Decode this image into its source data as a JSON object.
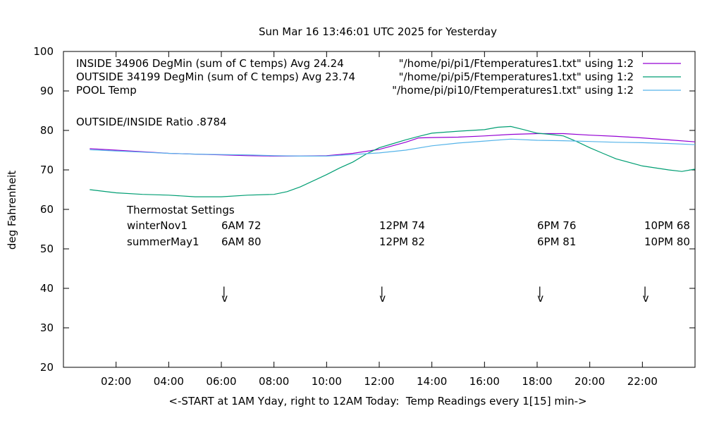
{
  "chart_data": {
    "type": "line",
    "title": "Sun Mar 16 13:46:01 UTC 2025 for Yesterday",
    "xlabel": "<-START at 1AM Yday, right to 12AM Today:  Temp Readings every 1[15] min->",
    "ylabel": "deg Fahrenheit",
    "xlim": [
      0.0,
      24.0
    ],
    "ylim": [
      20,
      100
    ],
    "yticks": [
      20,
      30,
      40,
      50,
      60,
      70,
      80,
      90,
      100
    ],
    "xticks": [
      {
        "x": 2,
        "label": "02:00"
      },
      {
        "x": 4,
        "label": "04:00"
      },
      {
        "x": 6,
        "label": "06:00"
      },
      {
        "x": 8,
        "label": "08:00"
      },
      {
        "x": 10,
        "label": "10:00"
      },
      {
        "x": 12,
        "label": "12:00"
      },
      {
        "x": 14,
        "label": "14:00"
      },
      {
        "x": 16,
        "label": "16:00"
      },
      {
        "x": 18,
        "label": "18:00"
      },
      {
        "x": 20,
        "label": "20:00"
      },
      {
        "x": 22,
        "label": "22:00"
      }
    ],
    "grid": false,
    "legend_position": "top-right",
    "series": [
      {
        "name": "INSIDE 34906 DegMin (sum of C temps) Avg 24.24",
        "source": "\"/home/pi/pi1/Ftemperatures1.txt\" using 1:2",
        "color": "#9400d3",
        "x": [
          1,
          2,
          3,
          4,
          5,
          6,
          7,
          8,
          9,
          10,
          11,
          12,
          13,
          13.5,
          14,
          15,
          16,
          17,
          18,
          19,
          20,
          21,
          22,
          23,
          24
        ],
        "y": [
          75.4,
          75.0,
          74.6,
          74.2,
          74.0,
          73.8,
          73.6,
          73.5,
          73.5,
          73.6,
          74.2,
          75.2,
          77.0,
          78.1,
          78.2,
          78.3,
          78.6,
          79.0,
          79.2,
          79.2,
          78.8,
          78.5,
          78.1,
          77.6,
          77.1
        ]
      },
      {
        "name": "OUTSIDE 34199 DegMin (sum of C temps) Avg 23.74",
        "source": "\"/home/pi/pi5/Ftemperatures1.txt\" using 1:2",
        "color": "#009e73",
        "x": [
          1,
          2,
          3,
          4,
          5,
          6,
          7,
          8,
          8.5,
          9,
          10,
          10.5,
          11,
          11.5,
          12,
          12.5,
          13,
          13.5,
          14,
          15,
          16,
          16.5,
          17,
          17.5,
          18,
          18.5,
          19,
          19.5,
          20,
          20.5,
          21,
          22,
          23,
          23.5,
          24
        ],
        "y": [
          65.0,
          64.2,
          63.8,
          63.6,
          63.2,
          63.2,
          63.6,
          63.8,
          64.5,
          65.7,
          68.8,
          70.5,
          72.0,
          74.0,
          75.6,
          76.6,
          77.6,
          78.5,
          79.3,
          79.8,
          80.2,
          80.8,
          81.0,
          80.2,
          79.3,
          79.0,
          78.6,
          77.2,
          75.6,
          74.2,
          72.8,
          71.0,
          70.0,
          69.6,
          70.2
        ]
      },
      {
        "name": "POOL Temp",
        "source": "\"/home/pi/pi10/Ftemperatures1.txt\" using 1:2",
        "color": "#56b4e9",
        "x": [
          1,
          2,
          3,
          4,
          5,
          6,
          7,
          8,
          9,
          10,
          11,
          12,
          13,
          14,
          15,
          16,
          17,
          18,
          19,
          20,
          21,
          22,
          23,
          24
        ],
        "y": [
          75.1,
          74.8,
          74.5,
          74.2,
          74.0,
          73.9,
          73.8,
          73.6,
          73.5,
          73.5,
          73.9,
          74.3,
          75.0,
          76.1,
          76.8,
          77.3,
          77.8,
          77.5,
          77.4,
          77.2,
          77.0,
          76.9,
          76.7,
          76.4
        ]
      }
    ],
    "annotations": {
      "ratio": "OUTSIDE/INSIDE Ratio .8784",
      "thermostat_title": "Thermostat Settings",
      "rows": [
        {
          "label": "winterNov1",
          "values": [
            "6AM 72",
            "12PM 74",
            "6PM 76",
            "10PM 68"
          ]
        },
        {
          "label": "summerMay1",
          "values": [
            "6AM 80",
            "12PM 82",
            "6PM 81",
            "10PM 80"
          ]
        }
      ],
      "markers": [
        {
          "x": 6.1,
          "top": "|",
          "bottom": "v"
        },
        {
          "x": 12.1,
          "top": "|",
          "bottom": "v"
        },
        {
          "x": 18.1,
          "top": "|",
          "bottom": "v"
        },
        {
          "x": 22.1,
          "top": "|",
          "bottom": "v"
        }
      ]
    }
  }
}
